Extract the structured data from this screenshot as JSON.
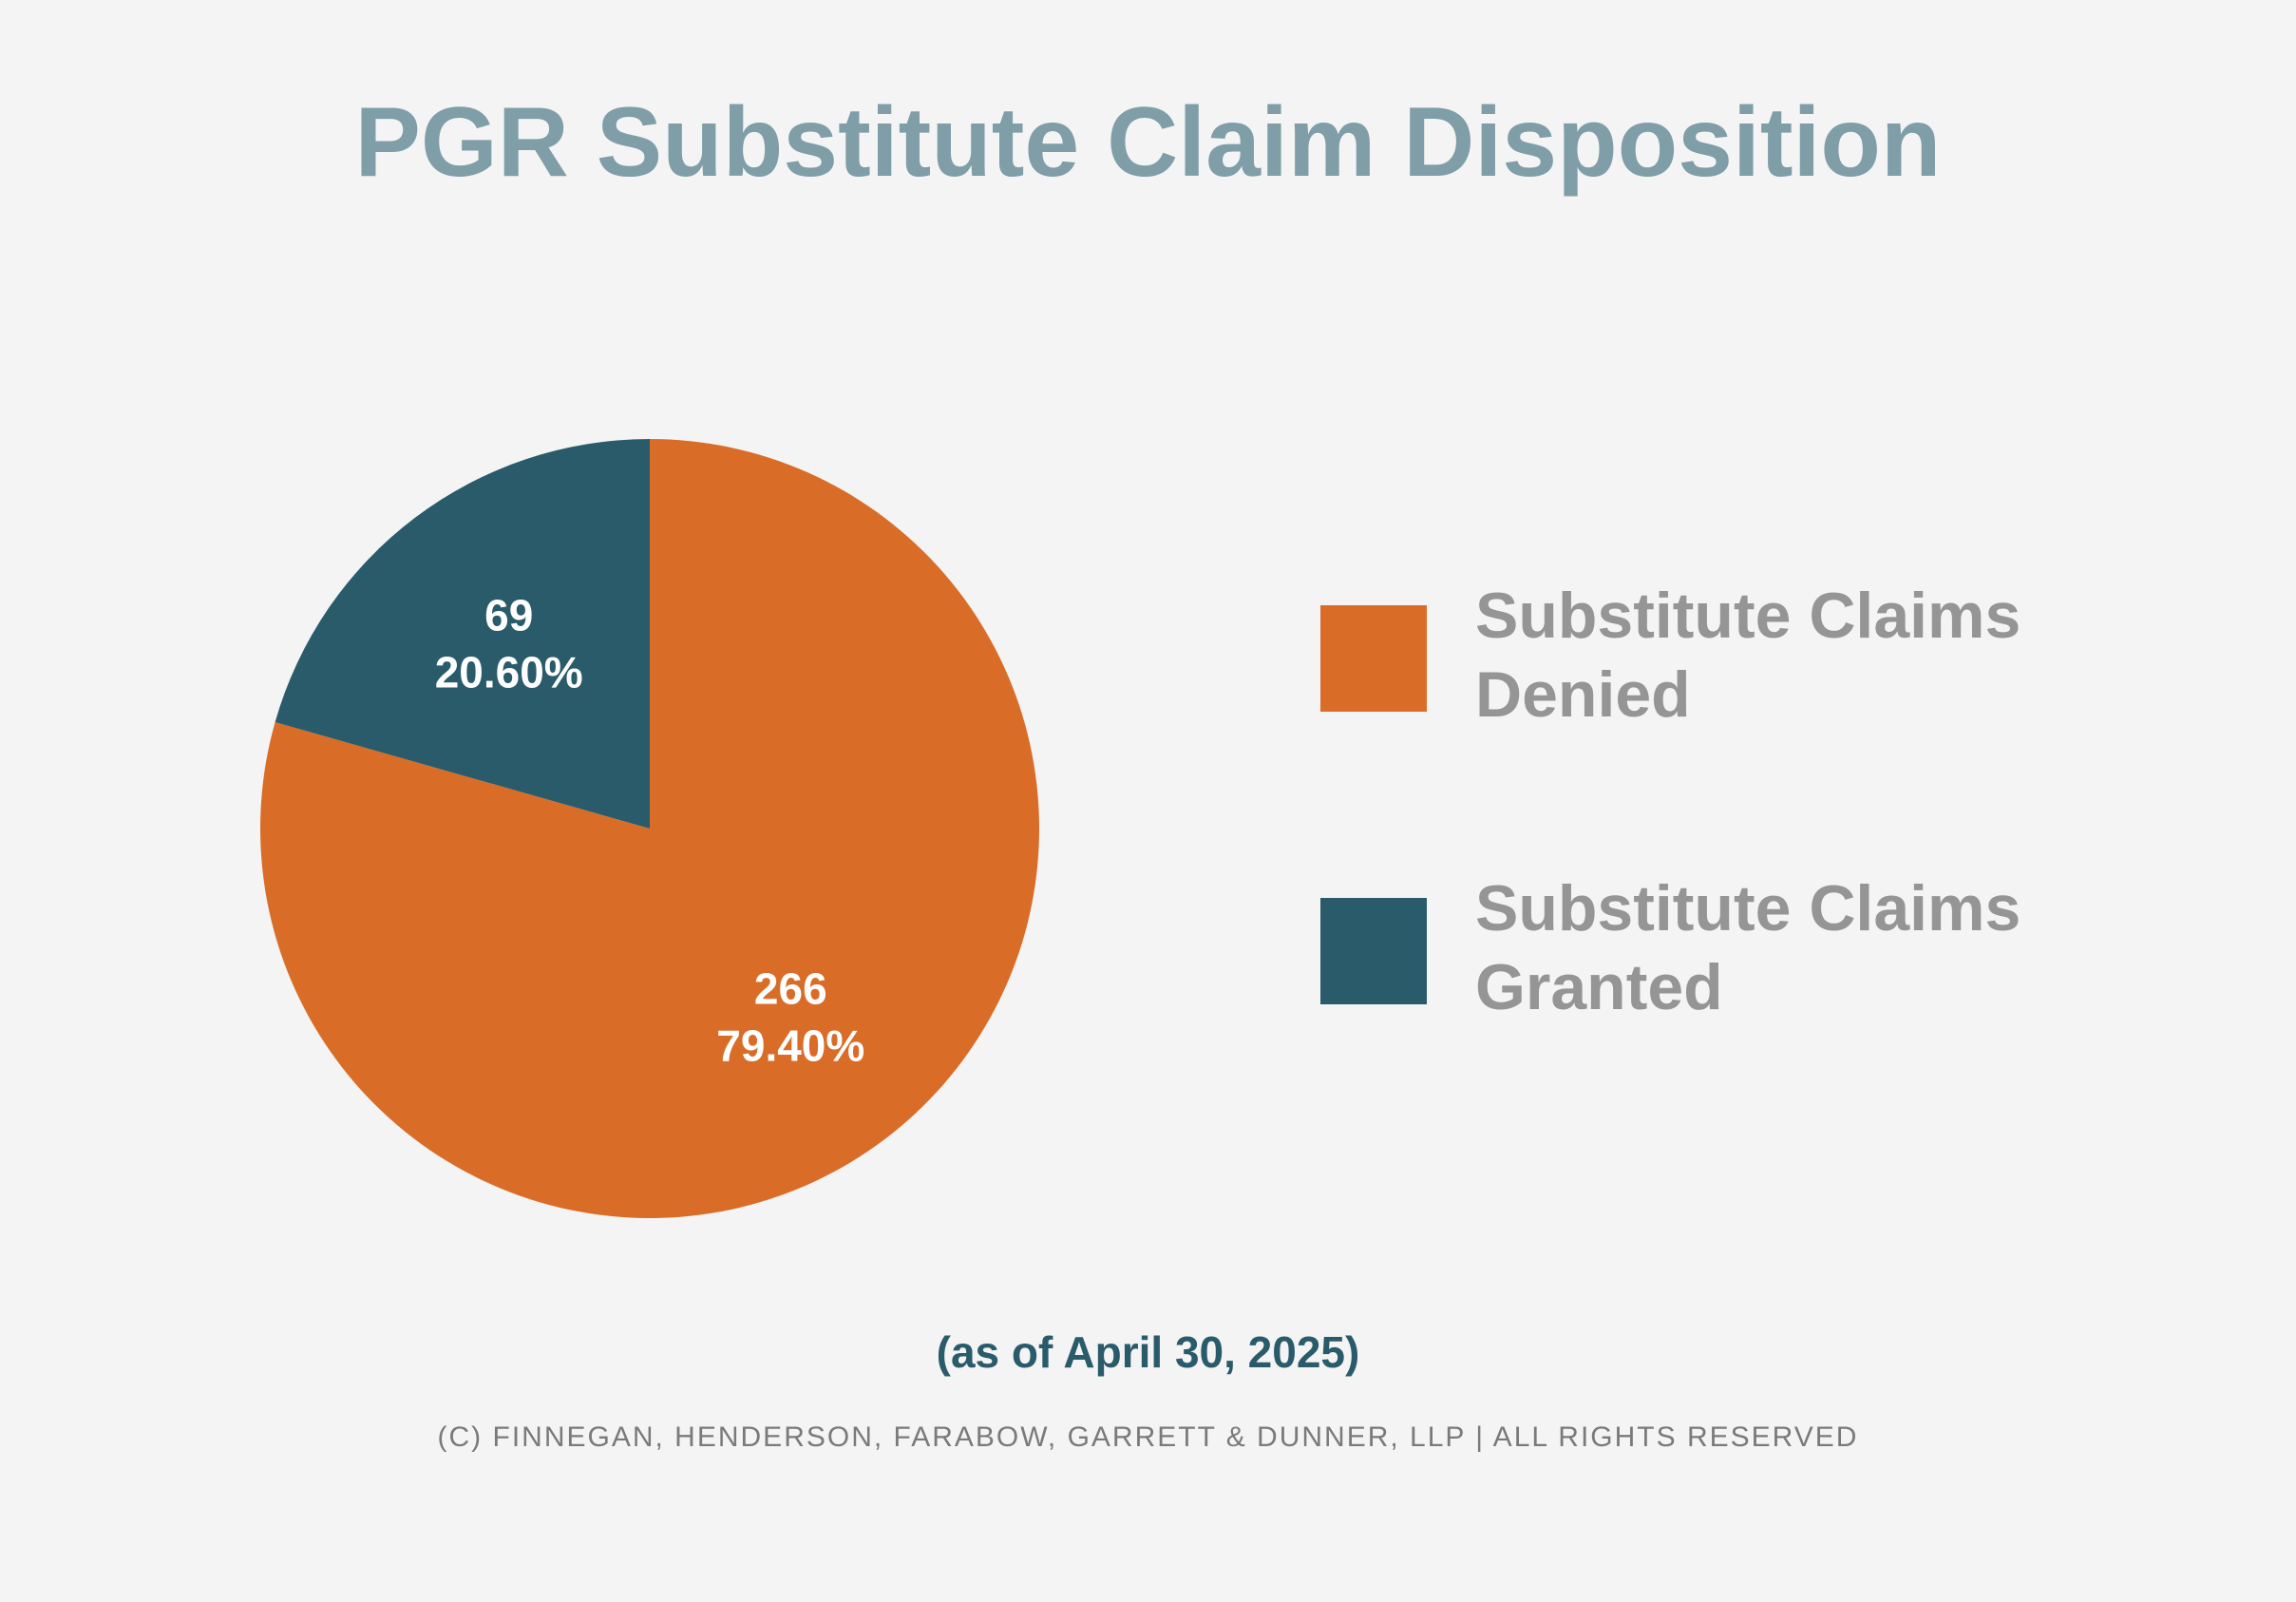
{
  "chart_data": {
    "type": "pie",
    "title": "PGR Substitute Claim Disposition",
    "slices": [
      {
        "name": "Substitute Claims Denied",
        "value": 266,
        "percent_label": "79.40%",
        "color": "#d96d28"
      },
      {
        "name": "Substitute Claims Granted",
        "value": 69,
        "percent_label": "20.60%",
        "color": "#295b6b"
      }
    ],
    "legend": [
      {
        "line1": "Substitute Claims",
        "line2": "Denied",
        "color": "#d96d28"
      },
      {
        "line1": "Substitute Claims",
        "line2": "Granted",
        "color": "#295b6b"
      }
    ],
    "legend_position": "right",
    "start_angle_deg": 0,
    "direction": "clockwise",
    "label_color": "#ffffff"
  },
  "subtitle": "(as of April 30, 2025)",
  "footer": "(c) finnegan, henderson, farabow, garrett & dunner, llp | all rights reserved"
}
